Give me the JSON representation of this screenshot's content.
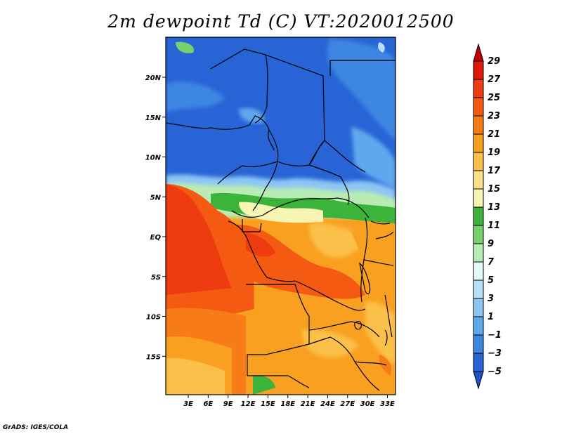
{
  "title": "2m dewpoint Td (C) VT:2020012500",
  "credit": "GrADS: IGES/COLA",
  "map": {
    "lat_ticks": [
      {
        "label": "20N",
        "lat": 20
      },
      {
        "label": "15N",
        "lat": 15
      },
      {
        "label": "10N",
        "lat": 10
      },
      {
        "label": "5N",
        "lat": 5
      },
      {
        "label": "EQ",
        "lat": 0
      },
      {
        "label": "5S",
        "lat": -5
      },
      {
        "label": "10S",
        "lat": -10
      },
      {
        "label": "15S",
        "lat": -15
      }
    ],
    "lon_ticks": [
      {
        "label": "3E",
        "lon": 3
      },
      {
        "label": "6E",
        "lon": 6
      },
      {
        "label": "9E",
        "lon": 9
      },
      {
        "label": "12E",
        "lon": 12
      },
      {
        "label": "15E",
        "lon": 15
      },
      {
        "label": "18E",
        "lon": 18
      },
      {
        "label": "21E",
        "lon": 21
      },
      {
        "label": "24E",
        "lon": 24
      },
      {
        "label": "27E",
        "lon": 27
      },
      {
        "label": "30E",
        "lon": 30
      },
      {
        "label": "33E",
        "lon": 33
      }
    ]
  },
  "colorbar": {
    "levels": [
      {
        "label": "29",
        "color": "#c00000"
      },
      {
        "label": "27",
        "color": "#dd1a0a"
      },
      {
        "label": "25",
        "color": "#ee3c10"
      },
      {
        "label": "23",
        "color": "#f55a12"
      },
      {
        "label": "21",
        "color": "#f77c18"
      },
      {
        "label": "19",
        "color": "#f9a020"
      },
      {
        "label": "17",
        "color": "#fbc04a"
      },
      {
        "label": "15",
        "color": "#fde08a"
      },
      {
        "label": "13",
        "color": "#f6f5b4"
      },
      {
        "label": "11",
        "color": "#3cb43c"
      },
      {
        "label": "9",
        "color": "#76d06e"
      },
      {
        "label": "7",
        "color": "#b8ecb4"
      },
      {
        "label": "5",
        "color": "#e4f8f4"
      },
      {
        "label": "3",
        "color": "#b8def8"
      },
      {
        "label": "1",
        "color": "#8cc6f4"
      },
      {
        "label": "−1",
        "color": "#5ea8ee"
      },
      {
        "label": "−3",
        "color": "#3c86e2"
      },
      {
        "label": "−5",
        "color": "#2864d6"
      }
    ],
    "bottom_color": "#1e50c8"
  }
}
